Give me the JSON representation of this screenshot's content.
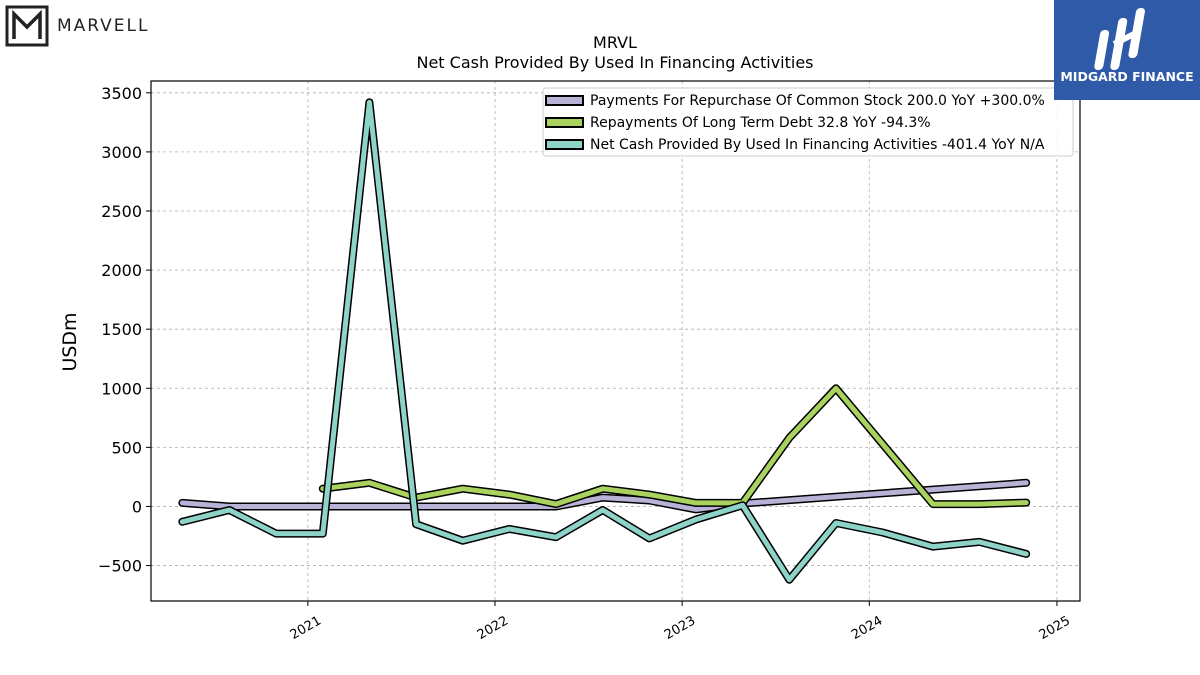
{
  "logos": {
    "left_text": "MARVELL",
    "right_text": "MIDGARD FINANCE"
  },
  "chart_data": {
    "type": "line",
    "title": "MRVL",
    "subtitle": "Net Cash Provided By Used In Financing Activities",
    "ylabel": "USDm",
    "xlabel": "",
    "x_ticks": [
      "2021",
      "2022",
      "2023",
      "2024",
      "2025"
    ],
    "y_ticks": [
      -500,
      0,
      500,
      1000,
      1500,
      2000,
      2500,
      3000,
      3500
    ],
    "ylim": [
      -800,
      3600
    ],
    "xlim": [
      "2020-03-01",
      "2025-02-15"
    ],
    "grid": true,
    "legend_position": "top-right",
    "series": [
      {
        "name": "Payments For Repurchase Of Common Stock  200.0 YoY +300.0%",
        "color": "#b8b3d6",
        "points": [
          [
            "2020-05-01",
            30
          ],
          [
            "2020-08-01",
            0
          ],
          [
            "2020-10-31",
            0
          ],
          [
            "2021-01-30",
            0
          ],
          [
            "2021-05-01",
            0
          ],
          [
            "2021-07-31",
            0
          ],
          [
            "2021-10-30",
            0
          ],
          [
            "2022-01-29",
            0
          ],
          [
            "2022-04-30",
            0
          ],
          [
            "2022-07-30",
            75
          ],
          [
            "2022-10-29",
            50
          ],
          [
            "2023-01-28",
            -25
          ],
          [
            "2023-04-29",
            25
          ],
          [
            "2024-11-02",
            200
          ]
        ]
      },
      {
        "name": "Repayments Of Long Term Debt  32.8 YoY -94.3%",
        "color": "#a9d35e",
        "points": [
          [
            "2021-01-30",
            150
          ],
          [
            "2021-05-01",
            200
          ],
          [
            "2021-07-31",
            75
          ],
          [
            "2021-10-30",
            150
          ],
          [
            "2022-01-29",
            100
          ],
          [
            "2022-04-30",
            20
          ],
          [
            "2022-07-30",
            150
          ],
          [
            "2022-10-29",
            100
          ],
          [
            "2023-01-28",
            30
          ],
          [
            "2023-04-29",
            30
          ],
          [
            "2023-07-29",
            580
          ],
          [
            "2023-10-28",
            1000
          ],
          [
            "2024-05-04",
            20
          ],
          [
            "2024-08-03",
            20
          ],
          [
            "2024-11-02",
            32.8
          ]
        ]
      },
      {
        "name": "Net Cash Provided By Used In Financing Activities  -401.4 YoY N/A",
        "color": "#8dd3c7",
        "points": [
          [
            "2020-05-01",
            -130
          ],
          [
            "2020-08-01",
            -30
          ],
          [
            "2020-10-31",
            -230
          ],
          [
            "2021-01-30",
            -230
          ],
          [
            "2021-05-01",
            3420
          ],
          [
            "2021-07-31",
            -150
          ],
          [
            "2021-10-30",
            -290
          ],
          [
            "2022-01-29",
            -190
          ],
          [
            "2022-04-30",
            -260
          ],
          [
            "2022-07-30",
            -30
          ],
          [
            "2022-10-29",
            -270
          ],
          [
            "2023-01-28",
            -110
          ],
          [
            "2023-04-29",
            10
          ],
          [
            "2023-07-29",
            -620
          ],
          [
            "2023-10-28",
            -140
          ],
          [
            "2024-01-27",
            -220
          ],
          [
            "2024-05-04",
            -340
          ],
          [
            "2024-08-03",
            -300
          ],
          [
            "2024-11-02",
            -401.4
          ]
        ]
      }
    ]
  }
}
